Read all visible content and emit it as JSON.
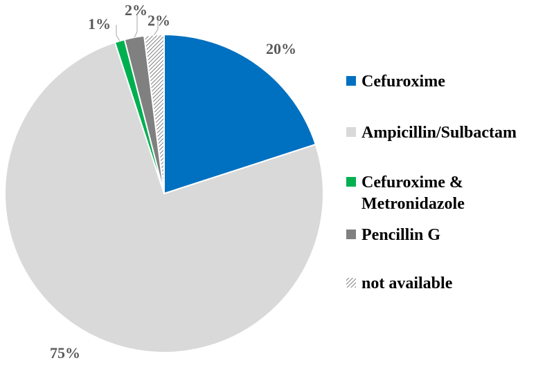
{
  "chart_data": {
    "type": "pie",
    "title": "",
    "slices": [
      {
        "label": "Cefuroxime",
        "value": 20,
        "value_label": "20%",
        "color": "#0070C0"
      },
      {
        "label": "Ampicillin/Sulbactam",
        "value": 75,
        "value_label": "75%",
        "color": "#D9D9D9"
      },
      {
        "label": "Cefuroxime & Metronidazole",
        "label_lines": [
          "Cefuroxime &",
          "Metronidazole"
        ],
        "value": 1,
        "value_label": "1%",
        "color": "#00B050"
      },
      {
        "label": "Pencillin G",
        "value": 2,
        "value_label": "2%",
        "color": "#808080"
      },
      {
        "label": "not available",
        "value": 2,
        "value_label": "2%",
        "color": "hatched"
      }
    ],
    "legend_position": "right"
  }
}
